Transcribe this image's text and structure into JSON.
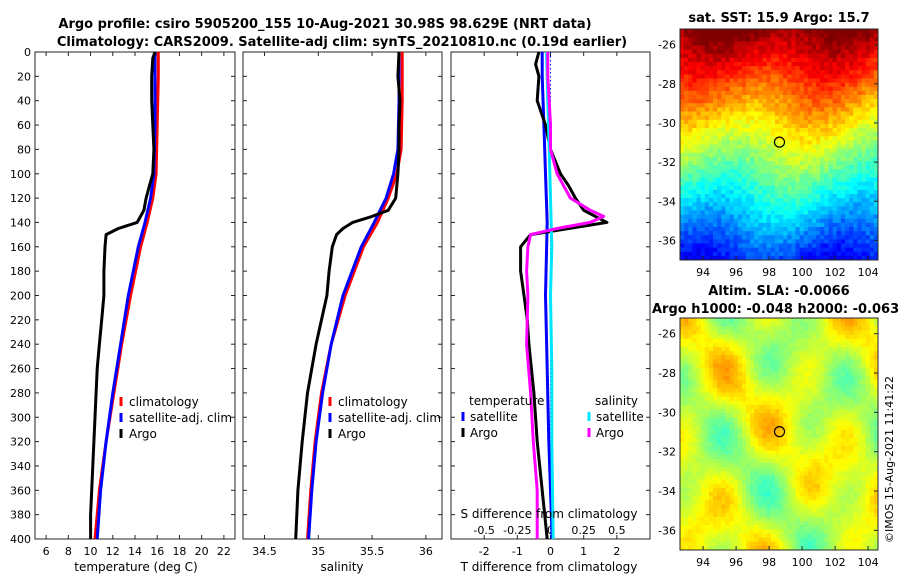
{
  "header": {
    "line1": "Argo profile: csiro 5905200_155 10-Aug-2021 30.98S 98.629E (NRT data)",
    "line2": "Climatology: CARS2009. Satellite-adj clim: synTS_20210810.nc (0.19d earlier)"
  },
  "colors": {
    "climatology": "#ff0000",
    "satellite": "#0000ff",
    "argo": "#000000",
    "sal_satellite": "#00e5ff",
    "sal_argo": "#ff00ff"
  },
  "chart_data": [
    {
      "type": "line",
      "id": "temperature",
      "xlabel": "temperature (deg C)",
      "ylabel": "",
      "xlim": [
        5,
        23
      ],
      "ylim": [
        400,
        0
      ],
      "xticks": [
        "6",
        "8",
        "10",
        "12",
        "14",
        "16",
        "18",
        "20",
        "22"
      ],
      "xtick_values": [
        6,
        8,
        10,
        12,
        14,
        16,
        18,
        20,
        22
      ],
      "yticks": [
        "0",
        "20",
        "40",
        "60",
        "80",
        "100",
        "120",
        "140",
        "160",
        "180",
        "200",
        "220",
        "240",
        "260",
        "280",
        "300",
        "320",
        "340",
        "360",
        "380",
        "400"
      ],
      "ytick_values": [
        0,
        20,
        40,
        60,
        80,
        100,
        120,
        140,
        160,
        180,
        200,
        220,
        240,
        260,
        280,
        300,
        320,
        340,
        360,
        380,
        400
      ],
      "legend": [
        "climatology",
        "satellite-adj. clim",
        "Argo"
      ],
      "series": [
        {
          "name": "climatology",
          "color": "#ff0000",
          "depth": [
            0,
            20,
            60,
            100,
            120,
            140,
            160,
            200,
            240,
            280,
            320,
            360,
            400
          ],
          "values": [
            16.1,
            16.1,
            16.0,
            15.9,
            15.6,
            15.1,
            14.5,
            13.6,
            12.8,
            12.1,
            11.4,
            10.8,
            10.4
          ]
        },
        {
          "name": "satellite-adj. clim",
          "color": "#0000ff",
          "depth": [
            0,
            20,
            60,
            100,
            120,
            140,
            160,
            200,
            240,
            280,
            320,
            360,
            400
          ],
          "values": [
            15.8,
            15.8,
            15.8,
            15.7,
            15.4,
            14.9,
            14.3,
            13.4,
            12.7,
            12.0,
            11.4,
            10.9,
            10.6
          ]
        },
        {
          "name": "Argo",
          "color": "#000000",
          "depth": [
            0,
            5,
            20,
            40,
            60,
            80,
            100,
            110,
            120,
            130,
            140,
            145,
            150,
            160,
            180,
            200,
            220,
            240,
            260,
            280,
            300,
            320,
            340,
            360,
            380,
            400
          ],
          "values": [
            15.8,
            15.6,
            15.5,
            15.5,
            15.6,
            15.7,
            15.6,
            15.3,
            15.0,
            14.8,
            14.2,
            12.5,
            11.4,
            11.3,
            11.2,
            11.2,
            11.0,
            10.8,
            10.6,
            10.5,
            10.4,
            10.3,
            10.2,
            10.1,
            10.0,
            10.0
          ]
        }
      ]
    },
    {
      "type": "line",
      "id": "salinity",
      "xlabel": "salinity",
      "ylabel": "",
      "xlim": [
        34.3,
        36.15
      ],
      "ylim": [
        400,
        0
      ],
      "xticks": [
        "34.5",
        "35",
        "35.5",
        "36"
      ],
      "xtick_values": [
        34.5,
        35,
        35.5,
        36
      ],
      "legend": [
        "climatology",
        "satellite-adj. clim",
        "Argo"
      ],
      "series": [
        {
          "name": "climatology",
          "color": "#ff0000",
          "depth": [
            0,
            40,
            80,
            100,
            120,
            140,
            160,
            200,
            240,
            280,
            320,
            360,
            400
          ],
          "values": [
            35.78,
            35.78,
            35.77,
            35.73,
            35.65,
            35.55,
            35.42,
            35.25,
            35.12,
            35.03,
            34.97,
            34.93,
            34.9
          ]
        },
        {
          "name": "satellite-adj. clim",
          "color": "#0000ff",
          "depth": [
            0,
            40,
            80,
            100,
            120,
            140,
            160,
            200,
            240,
            280,
            320,
            360,
            400
          ],
          "values": [
            35.75,
            35.75,
            35.74,
            35.7,
            35.63,
            35.52,
            35.4,
            35.23,
            35.12,
            35.04,
            34.98,
            34.94,
            34.91
          ]
        },
        {
          "name": "Argo",
          "color": "#000000",
          "depth": [
            0,
            20,
            40,
            60,
            80,
            100,
            120,
            130,
            135,
            140,
            145,
            150,
            160,
            180,
            200,
            240,
            280,
            320,
            360,
            400
          ],
          "values": [
            35.75,
            35.74,
            35.76,
            35.75,
            35.75,
            35.74,
            35.72,
            35.65,
            35.5,
            35.32,
            35.23,
            35.17,
            35.13,
            35.1,
            35.08,
            34.98,
            34.9,
            34.85,
            34.81,
            34.79
          ]
        }
      ]
    },
    {
      "type": "line",
      "id": "difference",
      "xlabel": "T difference from climatology",
      "xlabel_top": "S difference from climatology",
      "xlim": [
        -3,
        3
      ],
      "ylim": [
        400,
        0
      ],
      "xticks": [
        "-2",
        "-1",
        "0",
        "1",
        "2"
      ],
      "xtick_values": [
        -2,
        -1,
        0,
        1,
        2
      ],
      "top_ticks": [
        "-0.5",
        "-0.25",
        "0",
        "0.25",
        "0.5"
      ],
      "top_tick_values": [
        -0.5,
        -0.25,
        0,
        0.25,
        0.5
      ],
      "s_scale": 4,
      "legend_titles": [
        "temperature",
        "salinity"
      ],
      "legend": [
        "satellite",
        "Argo",
        "satellite",
        "Argo"
      ],
      "series": [
        {
          "name": "satellite (temperature)",
          "color": "#0000ff",
          "depth": [
            0,
            20,
            60,
            100,
            140,
            200,
            260,
            320,
            400
          ],
          "values": [
            -0.25,
            -0.25,
            -0.2,
            -0.15,
            -0.1,
            -0.15,
            -0.1,
            -0.05,
            0.05
          ]
        },
        {
          "name": "Argo (temperature)",
          "color": "#000000",
          "depth": [
            0,
            10,
            20,
            40,
            60,
            80,
            100,
            110,
            120,
            130,
            140,
            150,
            160,
            180,
            200,
            220,
            240,
            280,
            320,
            360,
            400
          ],
          "values": [
            -0.35,
            -0.45,
            -0.35,
            -0.4,
            -0.15,
            0.0,
            0.3,
            0.55,
            0.75,
            1.0,
            1.7,
            -0.6,
            -0.9,
            -0.9,
            -0.8,
            -0.7,
            -0.65,
            -0.5,
            -0.4,
            -0.25,
            -0.1
          ]
        },
        {
          "name": "satellite (salinity)",
          "color": "#00e5ff",
          "depth": [
            0,
            40,
            80,
            120,
            160,
            200,
            260,
            320,
            400
          ],
          "values": [
            -0.03,
            -0.02,
            -0.01,
            0.0,
            0.01,
            0.0,
            0.01,
            0.01,
            0.02
          ]
        },
        {
          "name": "Argo (salinity)",
          "color": "#ff00ff",
          "depth": [
            0,
            20,
            40,
            60,
            80,
            100,
            120,
            130,
            135,
            140,
            145,
            150,
            160,
            180,
            200,
            240,
            280,
            320,
            360,
            400
          ],
          "values": [
            -0.02,
            -0.02,
            -0.01,
            0.0,
            0.0,
            0.05,
            0.15,
            0.3,
            0.4,
            0.3,
            0.05,
            -0.15,
            -0.17,
            -0.18,
            -0.17,
            -0.18,
            -0.15,
            -0.13,
            -0.1,
            -0.1
          ]
        }
      ]
    },
    {
      "type": "heatmap",
      "id": "sst_map",
      "title": "sat. SST: 15.9 Argo: 15.7",
      "xlim": [
        92.6,
        104.6
      ],
      "ylim": [
        -37,
        -25.2
      ],
      "xticks": [
        "94",
        "96",
        "98",
        "100",
        "102",
        "104"
      ],
      "xtick_values": [
        94,
        96,
        98,
        100,
        102,
        104
      ],
      "yticks": [
        "-26",
        "-28",
        "-30",
        "-32",
        "-34",
        "-36"
      ],
      "ytick_values": [
        -26,
        -28,
        -30,
        -32,
        -34,
        -36
      ],
      "marker": [
        98.629,
        -30.98
      ]
    },
    {
      "type": "heatmap",
      "id": "sla_map",
      "title": "Altim. SLA: -0.0066",
      "subtitle": "Argo h1000: -0.048 h2000: -0.063",
      "xlim": [
        92.6,
        104.6
      ],
      "ylim": [
        -37,
        -25.2
      ],
      "xticks": [
        "94",
        "96",
        "98",
        "100",
        "102",
        "104"
      ],
      "xtick_values": [
        94,
        96,
        98,
        100,
        102,
        104
      ],
      "yticks": [
        "-26",
        "-28",
        "-30",
        "-32",
        "-34",
        "-36"
      ],
      "ytick_values": [
        -26,
        -28,
        -30,
        -32,
        -34,
        -36
      ],
      "marker": [
        98.629,
        -30.98
      ]
    }
  ],
  "footer": {
    "copyright": "©IMOS 15-Aug-2021 11:41:22"
  }
}
